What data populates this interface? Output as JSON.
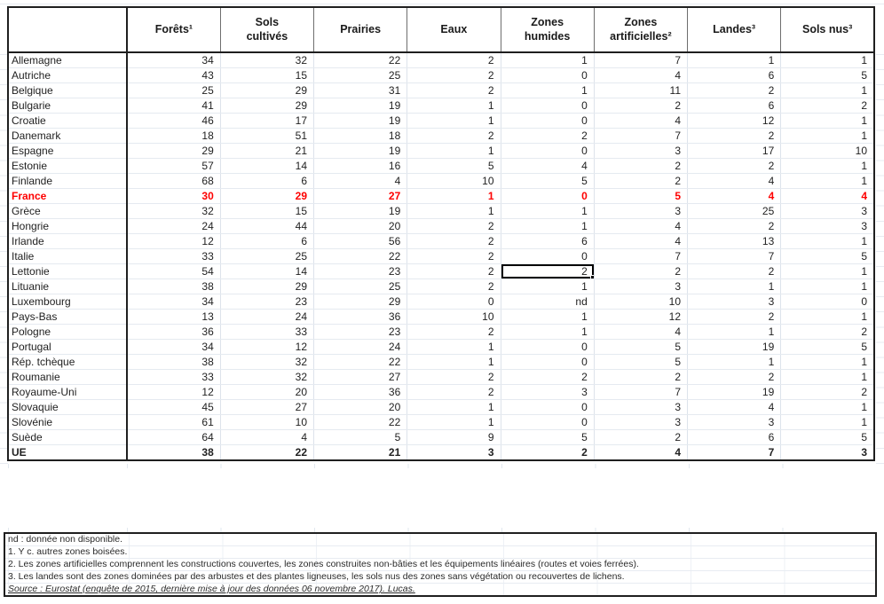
{
  "table": {
    "corner_label": "",
    "columns": [
      "Forêts¹",
      "Sols\ncultivés",
      "Prairies",
      "Eaux",
      "Zones\nhumides",
      "Zones\nartificielles²",
      "Landes³",
      "Sols nus³"
    ],
    "rows": [
      {
        "country": "Allemagne",
        "values": [
          34,
          32,
          22,
          2,
          1,
          7,
          1,
          1
        ]
      },
      {
        "country": "Autriche",
        "values": [
          43,
          15,
          25,
          2,
          0,
          4,
          6,
          5
        ]
      },
      {
        "country": "Belgique",
        "values": [
          25,
          29,
          31,
          2,
          1,
          11,
          2,
          1
        ]
      },
      {
        "country": "Bulgarie",
        "values": [
          41,
          29,
          19,
          1,
          0,
          2,
          6,
          2
        ]
      },
      {
        "country": "Croatie",
        "values": [
          46,
          17,
          19,
          1,
          0,
          4,
          12,
          1
        ]
      },
      {
        "country": "Danemark",
        "values": [
          18,
          51,
          18,
          2,
          2,
          7,
          2,
          1
        ]
      },
      {
        "country": "Espagne",
        "values": [
          29,
          21,
          19,
          1,
          0,
          3,
          17,
          10
        ]
      },
      {
        "country": "Estonie",
        "values": [
          57,
          14,
          16,
          5,
          4,
          2,
          2,
          1
        ]
      },
      {
        "country": "Finlande",
        "values": [
          68,
          6,
          4,
          10,
          5,
          2,
          4,
          1
        ]
      },
      {
        "country": "France",
        "values": [
          30,
          29,
          27,
          1,
          0,
          5,
          4,
          4
        ],
        "style": "red"
      },
      {
        "country": "Grèce",
        "values": [
          32,
          15,
          19,
          1,
          1,
          3,
          25,
          3
        ]
      },
      {
        "country": "Hongrie",
        "values": [
          24,
          44,
          20,
          2,
          1,
          4,
          2,
          3
        ]
      },
      {
        "country": "Irlande",
        "values": [
          12,
          6,
          56,
          2,
          6,
          4,
          13,
          1
        ]
      },
      {
        "country": "Italie",
        "values": [
          33,
          25,
          22,
          2,
          0,
          7,
          7,
          5
        ]
      },
      {
        "country": "Lettonie",
        "values": [
          54,
          14,
          23,
          2,
          2,
          2,
          2,
          1
        ]
      },
      {
        "country": "Lituanie",
        "values": [
          38,
          29,
          25,
          2,
          1,
          3,
          1,
          1
        ]
      },
      {
        "country": "Luxembourg",
        "values": [
          34,
          23,
          29,
          0,
          "nd",
          10,
          3,
          0
        ]
      },
      {
        "country": "Pays-Bas",
        "values": [
          13,
          24,
          36,
          10,
          1,
          12,
          2,
          1
        ]
      },
      {
        "country": "Pologne",
        "values": [
          36,
          33,
          23,
          2,
          1,
          4,
          1,
          2
        ]
      },
      {
        "country": "Portugal",
        "values": [
          34,
          12,
          24,
          1,
          0,
          5,
          19,
          5
        ]
      },
      {
        "country": "Rép. tchèque",
        "values": [
          38,
          32,
          22,
          1,
          0,
          5,
          1,
          1
        ]
      },
      {
        "country": "Roumanie",
        "values": [
          33,
          32,
          27,
          2,
          2,
          2,
          2,
          1
        ]
      },
      {
        "country": "Royaume-Uni",
        "values": [
          12,
          20,
          36,
          2,
          3,
          7,
          19,
          2
        ]
      },
      {
        "country": "Slovaquie",
        "values": [
          45,
          27,
          20,
          1,
          0,
          3,
          4,
          1
        ]
      },
      {
        "country": "Slovénie",
        "values": [
          61,
          10,
          22,
          1,
          0,
          3,
          3,
          1
        ]
      },
      {
        "country": "Suède",
        "values": [
          64,
          4,
          5,
          9,
          5,
          2,
          6,
          5
        ]
      },
      {
        "country": "UE",
        "values": [
          38,
          22,
          21,
          3,
          2,
          4,
          7,
          3
        ],
        "style": "bold"
      }
    ],
    "selection": {
      "row_index": 14,
      "value_index": 4,
      "row": "Lettonie",
      "column": "Zones humides",
      "value": 2
    }
  },
  "footnotes": {
    "lines": [
      "nd : donnée non disponible.",
      "1. Y c. autres zones boisées.",
      "2. Les zones artificielles comprennent les constructions couvertes, les zones construites non-bâties et les équipements linéaires (routes et voies ferrées).",
      "3. Les landes sont des zones dominées par des arbustes et des plantes ligneuses, les sols nus des zones sans végétation ou recouvertes de lichens."
    ],
    "source": "Source : Eurostat (enquête de 2015, dernière mise à jour des données 06 novembre 2017). Lucas."
  },
  "colors": {
    "highlight_text": "#fe0000",
    "border_dark": "#1f1f1f",
    "gridline": "#dde3eb"
  }
}
